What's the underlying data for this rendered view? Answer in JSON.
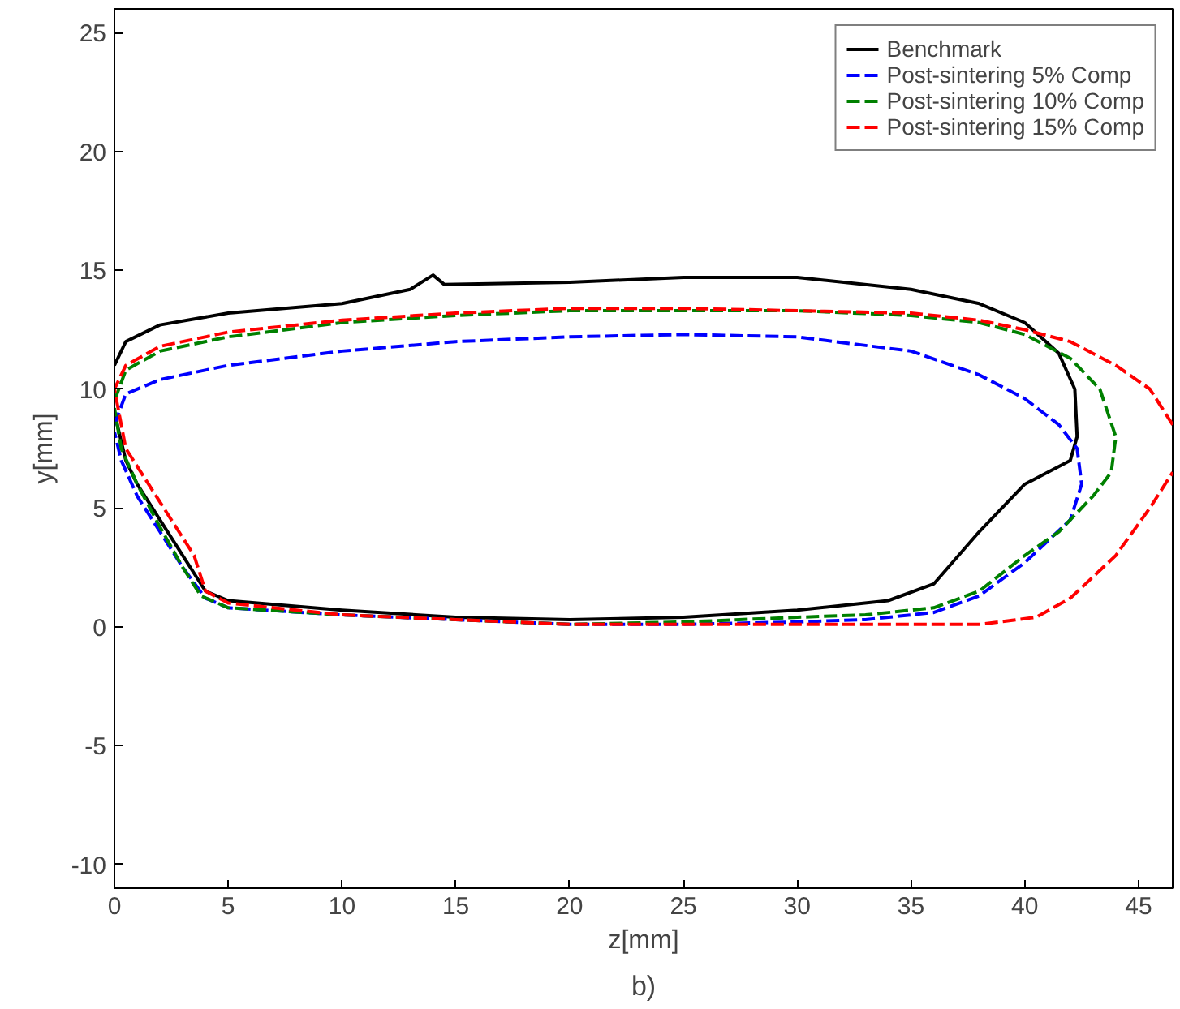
{
  "chart_data": {
    "type": "line",
    "xlabel": "z[mm]",
    "ylabel": "y[mm]",
    "xlim": [
      0,
      46.5
    ],
    "ylim": [
      -11,
      26
    ],
    "xticks": [
      0,
      5,
      10,
      15,
      20,
      25,
      30,
      35,
      40,
      45
    ],
    "yticks": [
      -10,
      -5,
      0,
      5,
      10,
      15,
      20,
      25
    ],
    "grid": false,
    "legend": "top right",
    "annotations": [
      "b)"
    ],
    "series": [
      {
        "name": "Benchmark",
        "color": "#000000",
        "line_style": "solid",
        "x": [
          0,
          0.5,
          2,
          5,
          10,
          13,
          14,
          14.5,
          20,
          25,
          30,
          35,
          38,
          40,
          41.5,
          42.2,
          42.3,
          42,
          40,
          38,
          36,
          34,
          30,
          25,
          20,
          15,
          10,
          5,
          4,
          3,
          2,
          1,
          0.5,
          0
        ],
        "values": [
          11,
          12,
          12.7,
          13.2,
          13.6,
          14.2,
          14.8,
          14.4,
          14.5,
          14.7,
          14.7,
          14.2,
          13.6,
          12.8,
          11.5,
          10,
          8,
          7,
          6,
          4,
          1.8,
          1.1,
          0.7,
          0.4,
          0.3,
          0.4,
          0.7,
          1.1,
          1.5,
          3,
          4.5,
          6,
          7,
          9
        ]
      },
      {
        "name": "Post-sintering 5% Comp",
        "color": "#0000ff",
        "line_style": "dashed",
        "x": [
          0,
          0.5,
          2,
          5,
          10,
          15,
          20,
          25,
          30,
          35,
          38,
          40,
          41.5,
          42.3,
          42.5,
          42,
          40,
          38,
          36,
          33,
          30,
          25,
          20,
          15,
          10,
          5,
          4,
          3,
          2,
          1,
          0.3,
          0
        ],
        "values": [
          8.5,
          9.8,
          10.4,
          11,
          11.6,
          12,
          12.2,
          12.3,
          12.2,
          11.6,
          10.6,
          9.6,
          8.5,
          7.5,
          6,
          4.5,
          2.7,
          1.3,
          0.6,
          0.3,
          0.2,
          0.1,
          0.1,
          0.3,
          0.5,
          0.8,
          1.2,
          2.5,
          4,
          5.5,
          7,
          8.2
        ]
      },
      {
        "name": "Post-sintering 10% Comp",
        "color": "#008000",
        "line_style": "dashed",
        "x": [
          0,
          0.5,
          2,
          5,
          10,
          15,
          20,
          25,
          30,
          35,
          38,
          40,
          42,
          43.3,
          44,
          43.8,
          43,
          41.5,
          40,
          38,
          36,
          33,
          30,
          25,
          20,
          15,
          10,
          5,
          3.8,
          3,
          2,
          1,
          0.3,
          0
        ],
        "values": [
          9.5,
          10.8,
          11.6,
          12.2,
          12.8,
          13.1,
          13.3,
          13.3,
          13.3,
          13.1,
          12.8,
          12.3,
          11.3,
          10,
          8,
          6.5,
          5.5,
          4,
          3,
          1.5,
          0.8,
          0.5,
          0.4,
          0.2,
          0.1,
          0.3,
          0.5,
          0.8,
          1.3,
          2.5,
          4.2,
          6,
          7.5,
          9.2
        ]
      },
      {
        "name": "Post-sintering 15% Comp",
        "color": "#ff0000",
        "line_style": "dashed",
        "x": [
          46.5,
          45.5,
          44,
          42,
          40,
          38,
          35,
          30,
          25,
          20,
          15,
          10,
          5,
          2,
          0.5,
          0,
          0.5,
          1.5,
          2.5,
          3.5,
          4,
          5,
          10,
          15,
          20,
          25,
          30,
          35,
          38,
          40.5,
          42,
          44,
          45.5,
          46.5
        ],
        "values": [
          8.5,
          10,
          11,
          12,
          12.5,
          12.9,
          13.2,
          13.3,
          13.4,
          13.4,
          13.2,
          12.9,
          12.4,
          11.8,
          11,
          10,
          7.5,
          6,
          4.5,
          3,
          1.5,
          1,
          0.5,
          0.3,
          0.1,
          0.1,
          0.1,
          0.1,
          0.1,
          0.4,
          1.2,
          3,
          5,
          6.5
        ]
      }
    ]
  }
}
